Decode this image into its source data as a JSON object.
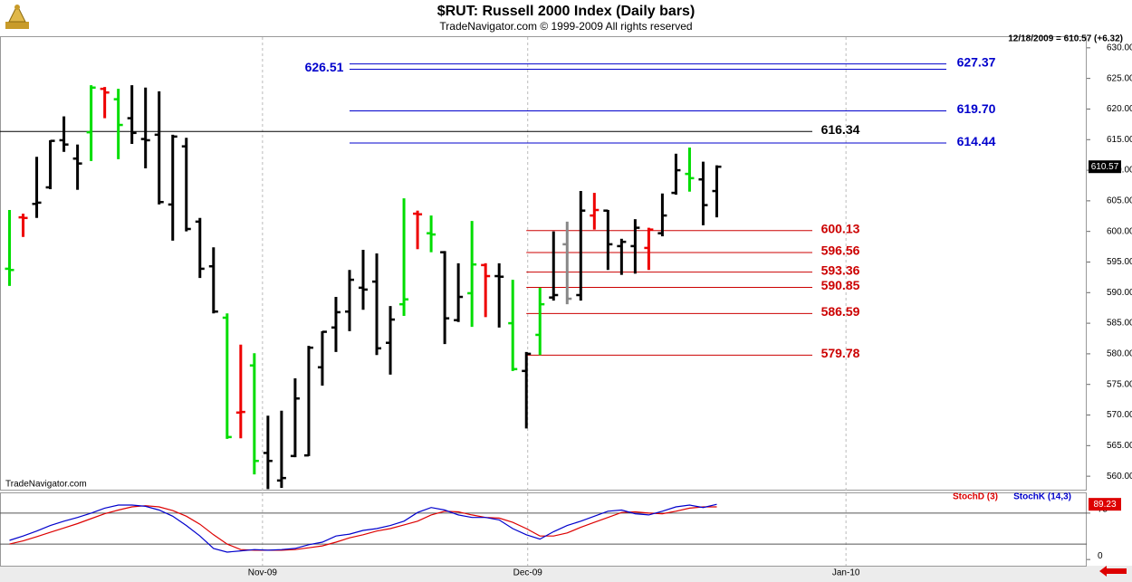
{
  "chart_data": [
    {
      "type": "ohlc",
      "title": "$RUT:  Russell 2000 Index  (Daily bars)",
      "subtitle": "TradeNavigator.com © 1999-2009 All rights reserved",
      "quote": "12/18/2009 = 610.57 (+6.32)",
      "watermark": "TradeNavigator.com",
      "open": [
        593.9,
        602.3,
        604.5,
        607.2,
        614.9,
        611.9,
        616.2,
        623.3,
        621.6,
        618.5,
        615.1,
        615.8,
        604.4,
        613.9,
        601.6,
        594.3,
        585.9,
        570.4,
        578.1,
        563.8,
        559.3,
        563.3,
        563.4,
        577.8,
        584.3,
        586.9,
        590.8,
        591.8,
        581.8,
        588.1,
        602.9,
        599.7,
        596.6,
        585.5,
        589.9,
        594.5,
        592.7,
        585.0,
        577.2,
        583.1,
        589.2,
        597.9,
        589.6,
        602.6,
        603.4,
        597.6,
        597.6,
        597.3,
        599.7,
        606.3,
        609.4,
        608.5,
        606.6
      ],
      "high": [
        603.5,
        602.9,
        612.2,
        614.9,
        618.8,
        614.2,
        623.9,
        623.6,
        623.3,
        623.9,
        623.5,
        622.9,
        615.8,
        615.3,
        602.2,
        597.4,
        586.6,
        581.5,
        580.1,
        569.9,
        570.7,
        576.0,
        581.3,
        583.7,
        589.3,
        593.7,
        597.0,
        596.4,
        587.8,
        605.4,
        603.4,
        602.6,
        596.8,
        594.8,
        601.7,
        594.8,
        594.8,
        592.1,
        580.3,
        590.8,
        600.0,
        601.6,
        606.6,
        606.3,
        603.5,
        598.8,
        602.0,
        600.6,
        606.2,
        612.7,
        613.7,
        611.4,
        610.8
      ],
      "low": [
        591.1,
        599.1,
        602.2,
        606.9,
        613.0,
        606.8,
        611.5,
        618.5,
        611.8,
        614.3,
        610.3,
        604.4,
        598.5,
        600.0,
        592.4,
        586.6,
        566.1,
        566.2,
        560.3,
        557.9,
        558.1,
        563.1,
        563.3,
        574.8,
        580.3,
        583.7,
        587.2,
        579.8,
        576.6,
        586.2,
        597.1,
        596.6,
        581.6,
        585.2,
        584.4,
        586.0,
        584.3,
        577.2,
        567.8,
        579.8,
        588.7,
        588.1,
        588.7,
        600.3,
        593.7,
        592.9,
        593.1,
        593.7,
        599.2,
        606.0,
        606.5,
        601.0,
        602.3
      ],
      "close": [
        593.7,
        602.2,
        604.7,
        614.8,
        614.2,
        611.1,
        623.5,
        622.7,
        617.4,
        616.1,
        614.9,
        604.8,
        615.5,
        600.4,
        593.9,
        586.9,
        566.4,
        570.5,
        562.5,
        562.5,
        559.7,
        572.7,
        581.0,
        583.6,
        586.8,
        592.1,
        590.5,
        580.9,
        585.6,
        588.9,
        602.8,
        599.5,
        585.8,
        589.3,
        594.6,
        592.7,
        592.6,
        577.5,
        580.0,
        588.1,
        589.6,
        589.0,
        603.4,
        603.5,
        597.9,
        598.3,
        600.6,
        600.3,
        602.6,
        610.0,
        608.7,
        604.3,
        610.57
      ],
      "colors": [
        "#00dd00",
        "#ee0000",
        "#000000",
        "#000000",
        "#000000",
        "#000000",
        "#00dd00",
        "#ee0000",
        "#00dd00",
        "#000000",
        "#000000",
        "#000000",
        "#000000",
        "#000000",
        "#000000",
        "#000000",
        "#00dd00",
        "#ee0000",
        "#00dd00",
        "#000000",
        "#000000",
        "#000000",
        "#000000",
        "#000000",
        "#000000",
        "#000000",
        "#000000",
        "#000000",
        "#000000",
        "#00dd00",
        "#ee0000",
        "#00dd00",
        "#000000",
        "#000000",
        "#00dd00",
        "#ee0000",
        "#000000",
        "#00dd00",
        "#000000",
        "#00dd00",
        "#000000",
        "#888888",
        "#000000",
        "#ee0000",
        "#000000",
        "#000000",
        "#000000",
        "#ee0000",
        "#000000",
        "#000000",
        "#00dd00",
        "#000000",
        "#000000"
      ],
      "levels": [
        {
          "value": 627.37,
          "label": "627.37",
          "color": "#0000cc"
        },
        {
          "value": 626.51,
          "label": "626.51",
          "color": "#0000cc"
        },
        {
          "value": 619.7,
          "label": "619.70",
          "color": "#0000cc"
        },
        {
          "value": 614.44,
          "label": "614.44",
          "color": "#0000cc"
        },
        {
          "value": 616.34,
          "label": "616.34",
          "color": "#000000"
        },
        {
          "value": 600.13,
          "label": "600.13",
          "color": "#cc0000"
        },
        {
          "value": 596.56,
          "label": "596.56",
          "color": "#cc0000"
        },
        {
          "value": 593.36,
          "label": "593.36",
          "color": "#cc0000"
        },
        {
          "value": 590.85,
          "label": "590.85",
          "color": "#cc0000"
        },
        {
          "value": 586.59,
          "label": "586.59",
          "color": "#cc0000"
        },
        {
          "value": 579.78,
          "label": "579.78",
          "color": "#cc0000"
        }
      ],
      "xlim": [
        -0.7,
        79.2
      ],
      "xticks": [
        {
          "value": 18.6,
          "label": "Nov-09"
        },
        {
          "value": 38.1,
          "label": "Dec-09"
        },
        {
          "value": 61.5,
          "label": "Jan-10"
        }
      ],
      "ylim": [
        557.8,
        631.9
      ],
      "yticks": [
        {
          "value": 560,
          "label": "560.00"
        },
        {
          "value": 565,
          "label": "565.00"
        },
        {
          "value": 570,
          "label": "570.00"
        },
        {
          "value": 575,
          "label": "575.00"
        },
        {
          "value": 580,
          "label": "580.00"
        },
        {
          "value": 585,
          "label": "585.00"
        },
        {
          "value": 590,
          "label": "590.00"
        },
        {
          "value": 595,
          "label": "595.00"
        },
        {
          "value": 600,
          "label": "600.00"
        },
        {
          "value": 605,
          "label": "605.00"
        },
        {
          "value": 610,
          "label": "610.00"
        },
        {
          "value": 615,
          "label": "615.00"
        },
        {
          "value": 620,
          "label": "620.00"
        },
        {
          "value": 625,
          "label": "625.00"
        },
        {
          "value": 630,
          "label": "630.00"
        }
      ]
    },
    {
      "type": "line",
      "series": [
        {
          "name": "StochD (3)",
          "color": "#dd0000",
          "values": [
            25,
            30,
            37,
            44,
            51,
            58,
            66,
            74,
            80,
            85,
            87,
            85,
            79,
            70,
            57,
            40,
            25,
            16,
            15,
            15,
            15,
            16,
            19,
            22,
            28,
            35,
            40,
            46,
            50,
            56,
            62,
            72,
            78,
            77,
            72,
            68,
            67,
            60,
            50,
            38,
            38,
            43,
            52,
            60,
            68,
            76,
            77,
            75,
            74,
            78,
            83,
            85,
            85
          ]
        },
        {
          "name": "StochK (14,3)",
          "color": "#0000cc",
          "values": [
            31,
            38,
            46,
            55,
            62,
            68,
            75,
            83,
            88,
            88,
            86,
            80,
            70,
            55,
            38,
            18,
            12,
            14,
            16,
            15,
            16,
            18,
            24,
            28,
            38,
            41,
            47,
            50,
            55,
            62,
            76,
            84,
            80,
            72,
            68,
            68,
            64,
            50,
            40,
            33,
            45,
            55,
            62,
            70,
            78,
            80,
            74,
            72,
            78,
            85,
            88,
            84,
            89.23
          ]
        }
      ],
      "ylim": [
        -10,
        107
      ],
      "yticks": [
        0,
        75
      ],
      "reference_lines": [
        25,
        75
      ]
    }
  ]
}
